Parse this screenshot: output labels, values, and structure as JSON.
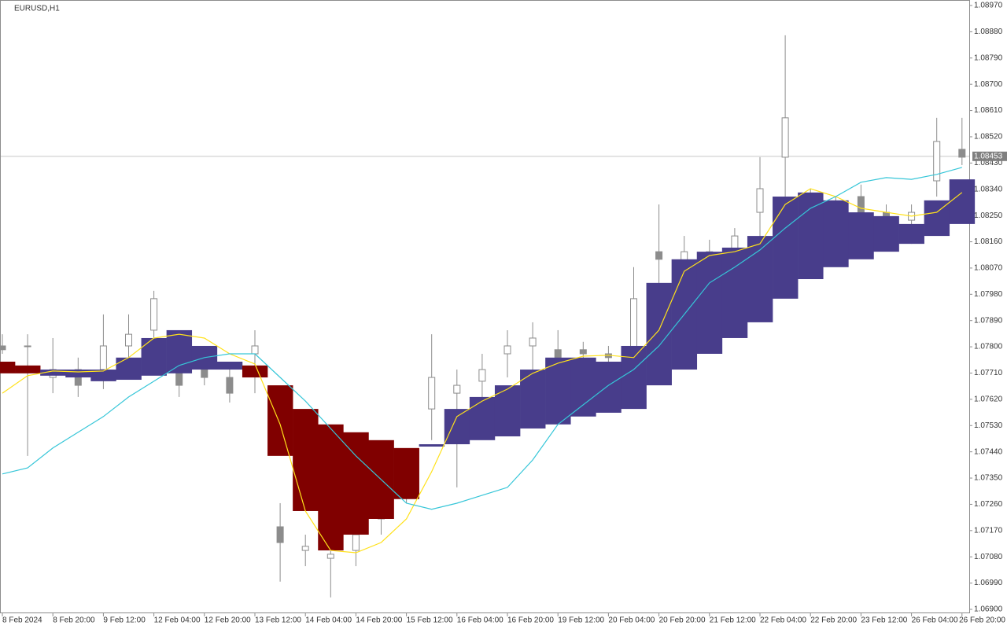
{
  "chart_data": {
    "type": "candlestick",
    "title": "EURUSD,H1",
    "categories": [
      "8 Feb 2024",
      null,
      "8 Feb 20:00",
      null,
      "9 Feb 12:00",
      null,
      "12 Feb 04:00",
      null,
      "12 Feb 20:00",
      null,
      "13 Feb 12:00",
      null,
      "14 Feb 04:00",
      null,
      "14 Feb 20:00",
      null,
      "15 Feb 12:00",
      null,
      "16 Feb 04:00",
      null,
      "16 Feb 20:00",
      null,
      "19 Feb 12:00",
      null,
      "20 Feb 04:00",
      null,
      "20 Feb 20:00",
      null,
      "21 Feb 12:00",
      null,
      "22 Feb 04:00",
      null,
      "22 Feb 20:00",
      null,
      "23 Feb 12:00",
      null,
      "26 Feb 04:00",
      null,
      "26 Feb 20:00"
    ],
    "candles": {
      "bull_color": "#ffffff",
      "bear_color": "#8c8c8c",
      "edge_color": "#8c8c8c",
      "open": [
        1.07803,
        1.07803,
        1.07695,
        1.07722,
        1.07722,
        1.07803,
        1.07857,
        1.07749,
        1.07722,
        1.07695,
        1.07776,
        1.07183,
        1.07102,
        1.07075,
        1.07102,
        1.0721,
        1.07318,
        1.07587,
        1.07641,
        1.07682,
        1.07776,
        1.07803,
        1.0779,
        1.0779,
        1.07776,
        1.07749,
        1.08126,
        1.08073,
        1.081,
        1.08126,
        1.08261,
        1.0845,
        1.08315,
        1.08275,
        1.08315,
        1.08261,
        1.08234,
        1.08369,
        1.08477
      ],
      "high": [
        1.07843,
        1.07843,
        1.0783,
        1.07763,
        1.07911,
        1.07911,
        1.07992,
        1.07803,
        1.07803,
        1.07722,
        1.07857,
        1.07264,
        1.07156,
        1.07183,
        1.0721,
        1.07318,
        1.07426,
        1.07843,
        1.07722,
        1.07776,
        1.07857,
        1.07884,
        1.07857,
        1.07817,
        1.07803,
        1.08073,
        1.08288,
        1.0818,
        1.08167,
        1.08207,
        1.0845,
        1.08868,
        1.08342,
        1.08315,
        1.08356,
        1.08288,
        1.08288,
        1.08585,
        1.08585
      ],
      "low": [
        1.07776,
        1.07426,
        1.07641,
        1.07628,
        1.07655,
        1.07695,
        1.07776,
        1.07628,
        1.07668,
        1.07609,
        1.07641,
        1.06995,
        1.07048,
        1.06941,
        1.07048,
        1.07156,
        1.07264,
        1.0748,
        1.07318,
        1.07614,
        1.07695,
        1.07695,
        1.07722,
        1.07736,
        1.07722,
        1.07722,
        1.08019,
        1.08019,
        1.08059,
        1.08073,
        1.08153,
        1.08288,
        1.08261,
        1.08234,
        1.08234,
        1.08207,
        1.08153,
        1.08315,
        1.08423
      ],
      "close": [
        1.0779,
        1.07803,
        1.07722,
        1.07668,
        1.07803,
        1.07843,
        1.07965,
        1.07668,
        1.07695,
        1.07641,
        1.07803,
        1.07129,
        1.07116,
        1.07089,
        1.07156,
        1.07264,
        1.07372,
        1.07695,
        1.07668,
        1.07722,
        1.07803,
        1.0783,
        1.07763,
        1.07776,
        1.07763,
        1.07965,
        1.081,
        1.08126,
        1.08126,
        1.0818,
        1.08342,
        1.08585,
        1.08288,
        1.08261,
        1.08261,
        1.08248,
        1.08261,
        1.08504,
        1.0845
      ]
    },
    "cloud": {
      "up_color": "#483d8b",
      "down_color": "#800000",
      "a": [
        1.07709,
        1.07709,
        1.07722,
        1.07722,
        1.07722,
        1.07763,
        1.0783,
        1.07857,
        1.07803,
        1.07749,
        1.07695,
        1.07426,
        1.07237,
        1.07102,
        1.07156,
        1.0721,
        1.07278,
        1.07466,
        1.07587,
        1.07628,
        1.07668,
        1.07722,
        1.07763,
        1.07763,
        1.07749,
        1.07803,
        1.08019,
        1.081,
        1.08126,
        1.0814,
        1.0818,
        1.08315,
        1.08329,
        1.08302,
        1.08261,
        1.08248,
        1.08221,
        1.08302,
        1.08374
      ],
      "b": [
        1.07749,
        1.07736,
        1.07701,
        1.07695,
        1.07682,
        1.07687,
        1.07701,
        1.07709,
        1.07722,
        1.07722,
        1.07736,
        1.07668,
        1.07587,
        1.07534,
        1.07507,
        1.0748,
        1.07453,
        1.07458,
        1.07466,
        1.0748,
        1.07493,
        1.0752,
        1.07534,
        1.07561,
        1.07574,
        1.07587,
        1.07668,
        1.07722,
        1.07776,
        1.0783,
        1.07884,
        1.07965,
        1.08032,
        1.08073,
        1.081,
        1.08126,
        1.08153,
        1.0818,
        1.08221
      ]
    },
    "lines": [
      {
        "color": "#ffe11a",
        "values": [
          1.07641,
          1.07701,
          1.07717,
          1.07714,
          1.07717,
          1.07763,
          1.0783,
          1.07843,
          1.0783,
          1.07776,
          1.07741,
          1.07534,
          1.07237,
          1.07102,
          1.07094,
          1.07129,
          1.0721,
          1.07372,
          1.07561,
          1.07614,
          1.07655,
          1.07709,
          1.07744,
          1.07768,
          1.07771,
          1.07763,
          1.07857,
          1.08059,
          1.08113,
          1.08126,
          1.08153,
          1.08288,
          1.08342,
          1.08315,
          1.08275,
          1.08261,
          1.08248,
          1.08261,
          1.08329
        ]
      },
      {
        "color": "#36c6d8",
        "values": [
          1.07364,
          1.07385,
          1.07453,
          1.07507,
          1.07561,
          1.07628,
          1.07682,
          1.07736,
          1.07763,
          1.07776,
          1.07776,
          1.07695,
          1.07614,
          1.0752,
          1.07426,
          1.07345,
          1.07264,
          1.07243,
          1.07264,
          1.07291,
          1.07318,
          1.07412,
          1.07534,
          1.07601,
          1.07668,
          1.07722,
          1.07803,
          1.07911,
          1.08019,
          1.08073,
          1.08132,
          1.08207,
          1.08275,
          1.08315,
          1.08364,
          1.0838,
          1.08374,
          1.08391,
          1.08415
        ]
      }
    ],
    "current_price": 1.08453,
    "ylim": [
      1.069,
      1.0897
    ],
    "yticks": [
      {
        "value": 1.0897,
        "label": "1.08970"
      },
      {
        "value": 1.0888,
        "label": "1.08880"
      },
      {
        "value": 1.0879,
        "label": "1.08790"
      },
      {
        "value": 1.087,
        "label": "1.08700"
      },
      {
        "value": 1.0861,
        "label": "1.08610"
      },
      {
        "value": 1.0852,
        "label": "1.08520"
      },
      {
        "value": 1.0843,
        "label": "1.08430"
      },
      {
        "value": 1.0834,
        "label": "1.08340"
      },
      {
        "value": 1.0825,
        "label": "1.08250"
      },
      {
        "value": 1.0816,
        "label": "1.08160"
      },
      {
        "value": 1.0807,
        "label": "1.08070"
      },
      {
        "value": 1.0798,
        "label": "1.07980"
      },
      {
        "value": 1.0789,
        "label": "1.07890"
      },
      {
        "value": 1.078,
        "label": "1.07800"
      },
      {
        "value": 1.0771,
        "label": "1.07710"
      },
      {
        "value": 1.0762,
        "label": "1.07620"
      },
      {
        "value": 1.0753,
        "label": "1.07530"
      },
      {
        "value": 1.0744,
        "label": "1.07440"
      },
      {
        "value": 1.0735,
        "label": "1.07350"
      },
      {
        "value": 1.0726,
        "label": "1.07260"
      },
      {
        "value": 1.0717,
        "label": "1.07170"
      },
      {
        "value": 1.0708,
        "label": "1.07080"
      },
      {
        "value": 1.0699,
        "label": "1.06990"
      },
      {
        "value": 1.069,
        "label": "1.06900"
      }
    ]
  }
}
